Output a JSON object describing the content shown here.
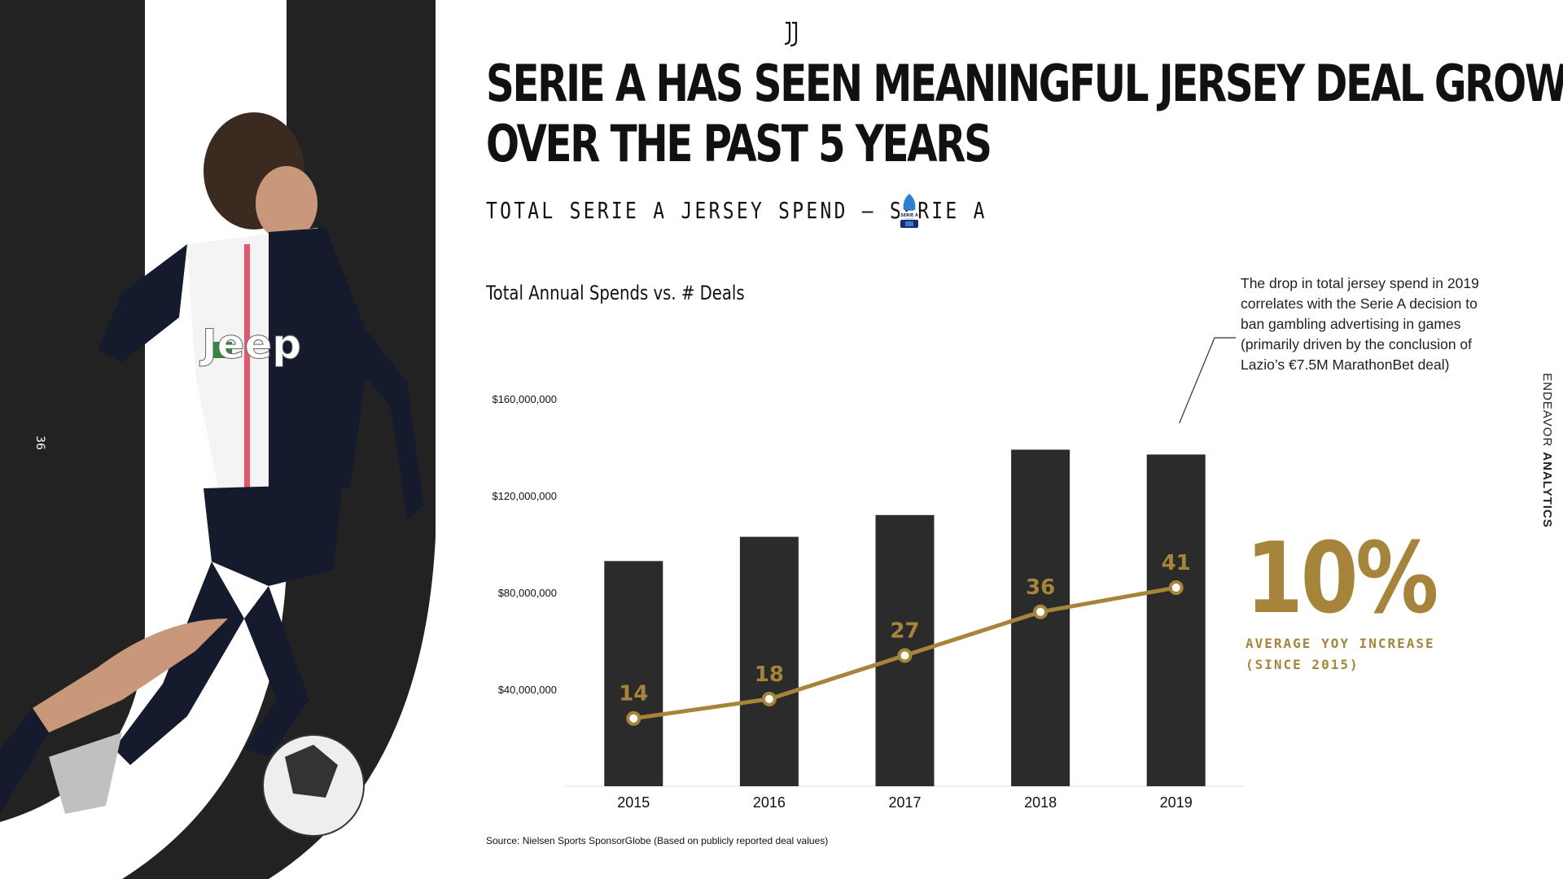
{
  "title_lines": [
    "Serie A has seen meaningful jersey deal growth",
    "over the past 5 years"
  ],
  "subtitle": "TOTAL SERIE A JERSEY SPEND – SERIE A",
  "league_logo_text": "SERIE A",
  "side_mark": "36",
  "annotation": "The drop in total jersey spend in 2019 correlates with the Serie A decision to ban gambling advertising in games (primarily driven by the conclusion of Lazio’s €7.5M MarathonBet deal)",
  "stat": {
    "value": "10%",
    "label_line1": "AVERAGE YOY INCREASE",
    "label_line2": "(SINCE 2015)"
  },
  "brand": {
    "part1": "ENDEAVOR",
    "part2": "ANALYTICS"
  },
  "source": "Source:  Nielsen Sports SponsorGlobe (Based on publicly reported deal values)",
  "colors": {
    "bar": "#2b2b2b",
    "line": "#a6853a",
    "accent": "#a6853a",
    "text": "#111111"
  },
  "chart_data": {
    "type": "bar",
    "title": "Total Annual Spends vs. # Deals",
    "categories": [
      "2015",
      "2016",
      "2017",
      "2018",
      "2019"
    ],
    "y_ticks": [
      "$40,000,000",
      "$80,000,000",
      "$120,000,000",
      "$160,000,000"
    ],
    "y_tick_values": [
      40000000,
      80000000,
      120000000,
      160000000
    ],
    "ylim": [
      0,
      160000000
    ],
    "series": [
      {
        "type": "bar",
        "values": [
          93000000,
          103000000,
          112000000,
          139000000,
          137000000
        ]
      },
      {
        "type": "line",
        "values": [
          14,
          18,
          27,
          36,
          41
        ],
        "ylim": [
          0,
          80
        ]
      }
    ]
  }
}
